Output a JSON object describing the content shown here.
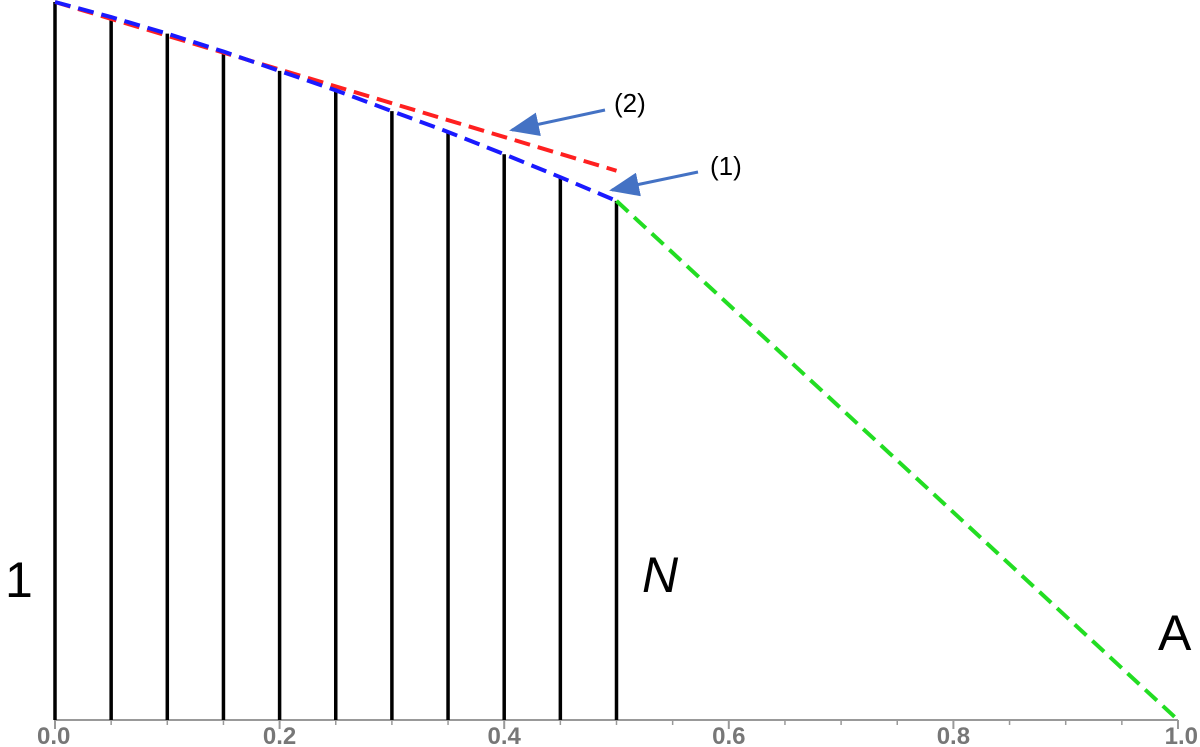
{
  "chart_data": {
    "type": "line",
    "xlim": [
      0,
      1
    ],
    "ylim": [
      0,
      1
    ],
    "xticks": [
      {
        "value": 0,
        "label": "0.0"
      },
      0.2,
      0.4,
      0.6,
      0.8,
      {
        "value": 1,
        "label": "1.0"
      }
    ],
    "xminorticks": [
      0.05,
      0.1,
      0.15,
      0.25,
      0.3,
      0.35,
      0.45,
      0.5,
      0.55,
      0.65,
      0.7,
      0.75,
      0.85,
      0.9,
      0.95
    ],
    "series": [
      {
        "style": "stem",
        "color": "#000000",
        "x": [
          0,
          0.05,
          0.1,
          0.15,
          0.2,
          0.25,
          0.3,
          0.35,
          0.4,
          0.45,
          0.5
        ],
        "values": [
          1.0,
          0.979,
          0.956,
          0.931,
          0.904,
          0.877,
          0.848,
          0.819,
          0.788,
          0.756,
          0.723
        ]
      },
      {
        "style": "dashed",
        "color": "#ff2020",
        "x": [
          0,
          0.5
        ],
        "values": [
          1.0,
          0.765
        ]
      },
      {
        "style": "dashed",
        "color": "#1a1aff",
        "x": [
          0,
          0.05,
          0.1,
          0.15,
          0.2,
          0.25,
          0.3,
          0.35,
          0.4,
          0.45,
          0.5
        ],
        "values": [
          1.0,
          0.979,
          0.956,
          0.931,
          0.904,
          0.877,
          0.848,
          0.819,
          0.788,
          0.756,
          0.723
        ]
      },
      {
        "style": "dashed",
        "color": "#22dd22",
        "x": [
          0.5,
          1.0
        ],
        "values": [
          0.723,
          0
        ]
      }
    ],
    "annotations": [
      "1",
      "N",
      "A",
      "(2)",
      "(1)"
    ]
  }
}
